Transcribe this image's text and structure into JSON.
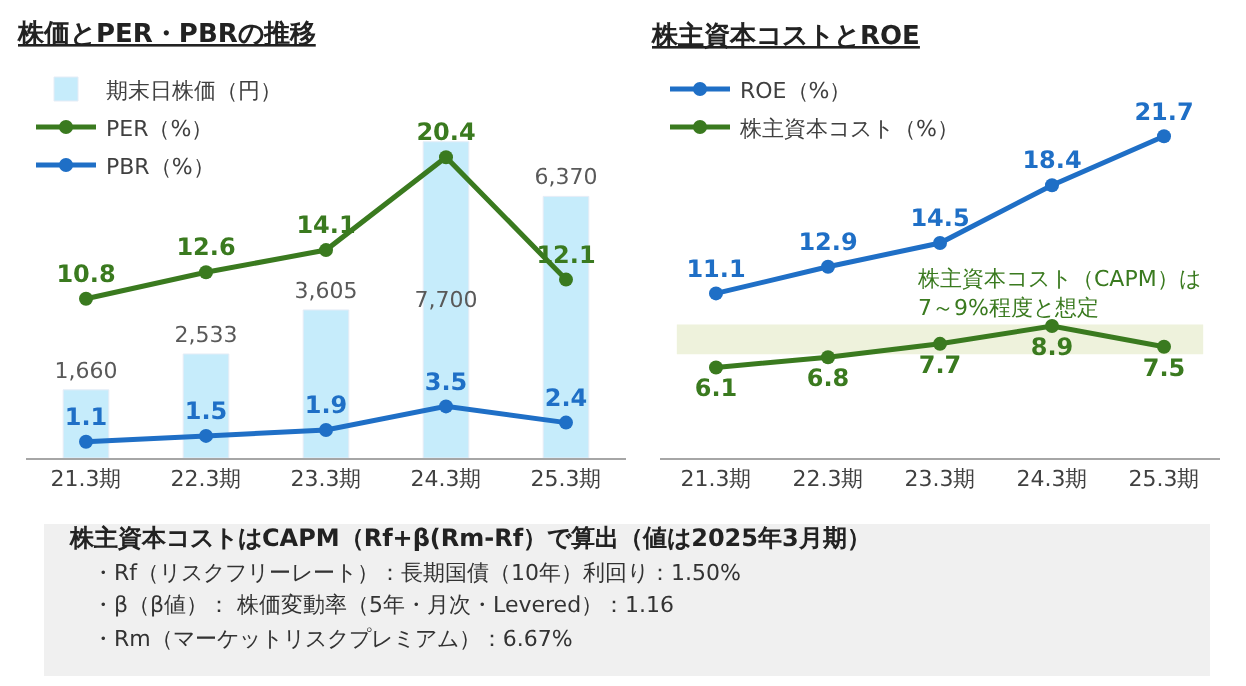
{
  "chart_data": [
    {
      "type": "bar",
      "title": "株価とPER・PBRの推移",
      "categories": [
        "21.3期",
        "22.3期",
        "23.3期",
        "24.3期",
        "25.3期"
      ],
      "series": [
        {
          "name": "期末日株価（円）",
          "type": "bar",
          "color": "#c6ecfb",
          "values": [
            1660,
            2533,
            3605,
            7700,
            6370
          ],
          "value_labels": [
            "1,660",
            "2,533",
            "3,605",
            "7,700",
            "6,370"
          ]
        },
        {
          "name": "PER（%）",
          "type": "line",
          "axis": "y2",
          "color": "#3a7a1f",
          "values": [
            10.8,
            12.6,
            14.1,
            20.4,
            12.1
          ]
        },
        {
          "name": "PBR（%）",
          "type": "line",
          "axis": "y2",
          "color": "#1f6fc6",
          "values": [
            1.1,
            1.5,
            1.9,
            3.5,
            2.4
          ]
        }
      ],
      "tick_labels": "x",
      "data_labels": true,
      "marker": "circle",
      "line_style": "solid",
      "grid": false,
      "legend": "top left"
    },
    {
      "type": "line",
      "title": "株主資本コストとROE",
      "categories": [
        "21.3期",
        "22.3期",
        "23.3期",
        "24.3期",
        "25.3期"
      ],
      "series": [
        {
          "name": "ROE（%）",
          "color": "#1f6fc6",
          "values": [
            11.1,
            12.9,
            14.5,
            18.4,
            21.7
          ]
        },
        {
          "name": "株主資本コスト（%）",
          "color": "#3a7a1f",
          "values": [
            6.1,
            6.8,
            7.7,
            8.9,
            7.5
          ]
        }
      ],
      "bands": [
        {
          "axis": "y",
          "from": 7,
          "to": 9,
          "label": "株主資本コスト（CAPM）は\n7～9%程度と想定",
          "color": "#eef2dc"
        }
      ],
      "tick_labels": "x",
      "data_labels": true,
      "marker": "circle",
      "line_style": "solid",
      "grid": false,
      "legend": "top left"
    },
    {
      "type": "other",
      "title": "株主資本コストはCAPM（Rf+β(Rm-Rf）で算出（値は2025年3月期）",
      "annotations": [
        "・Rf（リスクフリーレート）：長期国債（10年）利回り：1.50%",
        "・β（β値）： 株価変動率（5年・月次・Levered）：1.16",
        "・Rm（マーケットリスクプレミアム）：6.67%"
      ]
    }
  ]
}
